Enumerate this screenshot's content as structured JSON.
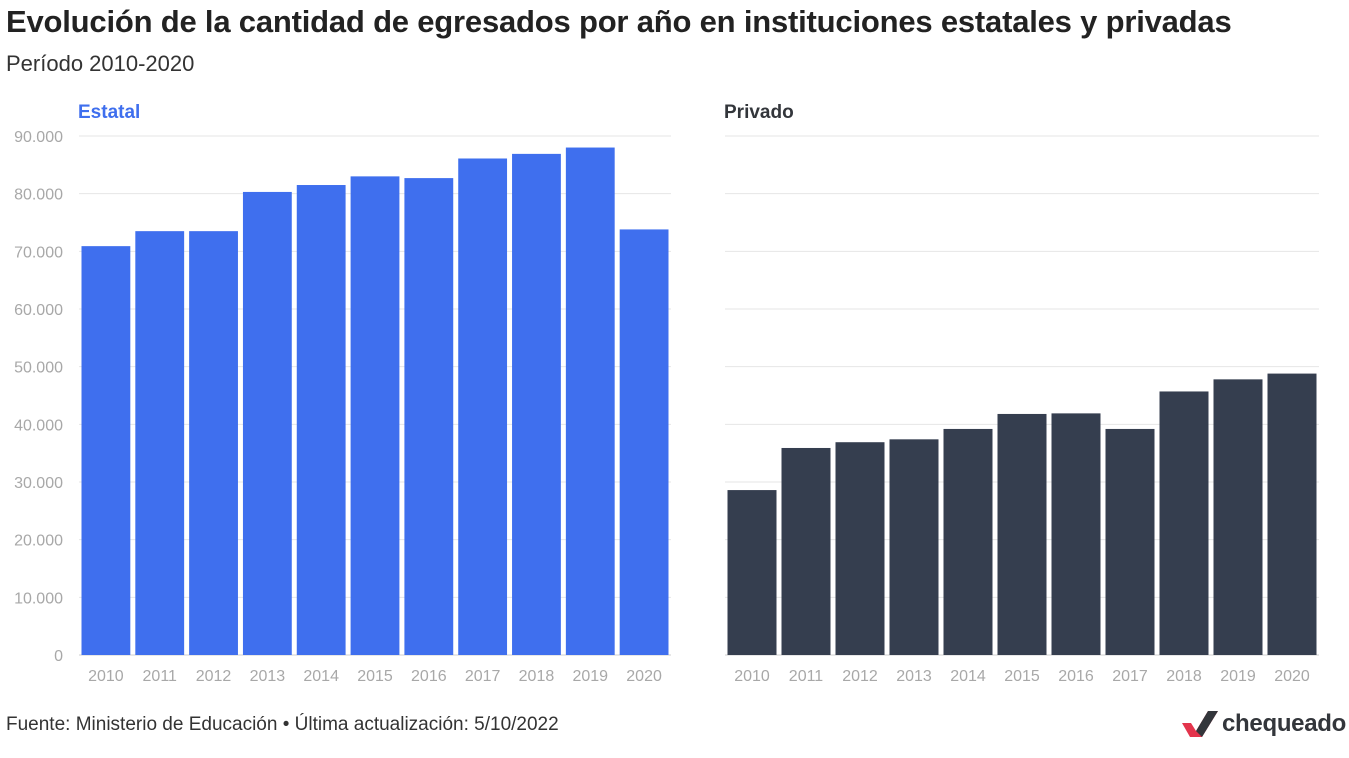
{
  "header": {
    "title": "Evolución de la cantidad de egresados por año en instituciones estatales y privadas",
    "subtitle": "Período 2010-2020"
  },
  "footer": {
    "source": "Fuente: Ministerio de Educación • Última actualización: 5/10/2022",
    "logo_text": "chequeado",
    "logo_icon": "check-mark-icon"
  },
  "colors": {
    "estatal": "#3f6fee",
    "privado": "#353e4f",
    "grid": "#e6e6e6",
    "tick": "#a8a8a8",
    "logo_accent": "#e3344c"
  },
  "chart_data": [
    {
      "type": "bar",
      "title": "Estatal",
      "title_color": "#3f6fee",
      "categories": [
        "2010",
        "2011",
        "2012",
        "2013",
        "2014",
        "2015",
        "2016",
        "2017",
        "2018",
        "2019",
        "2020"
      ],
      "values": [
        70900,
        73500,
        73500,
        80300,
        81500,
        83000,
        82700,
        86100,
        86900,
        88000,
        73800
      ],
      "ylim": [
        0,
        90000
      ],
      "yticks": [
        0,
        10000,
        20000,
        30000,
        40000,
        50000,
        60000,
        70000,
        80000,
        90000
      ],
      "ytick_labels": [
        "0",
        "10.000",
        "20.000",
        "30.000",
        "40.000",
        "50.000",
        "60.000",
        "70.000",
        "80.000",
        "90.000"
      ],
      "grid": true,
      "color": "#3f6fee"
    },
    {
      "type": "bar",
      "title": "Privado",
      "title_color": "#33363b",
      "categories": [
        "2010",
        "2011",
        "2012",
        "2013",
        "2014",
        "2015",
        "2016",
        "2017",
        "2018",
        "2019",
        "2020"
      ],
      "values": [
        28600,
        35900,
        36900,
        37400,
        39200,
        41800,
        41900,
        39200,
        45700,
        47800,
        48800
      ],
      "ylim": [
        0,
        90000
      ],
      "yticks": [
        0,
        10000,
        20000,
        30000,
        40000,
        50000,
        60000,
        70000,
        80000,
        90000
      ],
      "ytick_labels": [],
      "grid": true,
      "color": "#353e4f"
    }
  ]
}
